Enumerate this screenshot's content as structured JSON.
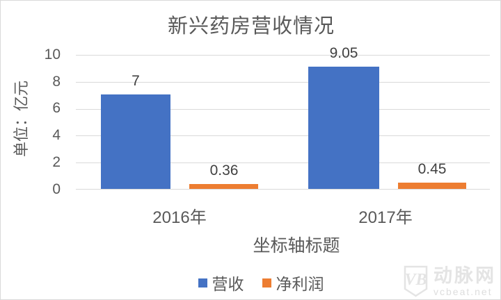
{
  "chart_data": {
    "type": "bar",
    "title": "新兴药房营收情况",
    "categories": [
      "2016年",
      "2017年"
    ],
    "series": [
      {
        "name": "营收",
        "color": "#4472C4",
        "values": [
          7,
          9.05
        ],
        "labels": [
          "7",
          "9.05"
        ]
      },
      {
        "name": "净利润",
        "color": "#ED7D31",
        "values": [
          0.36,
          0.45
        ],
        "labels": [
          "0.36",
          "0.45"
        ]
      }
    ],
    "xlabel": "坐标轴标题",
    "ylabel": "单位：亿元",
    "ylim": [
      0,
      10
    ],
    "yticks": [
      "10",
      "8",
      "6",
      "4",
      "2",
      "0"
    ],
    "grid": true,
    "legend_position": "bottom"
  },
  "watermark": {
    "logo_text": "VB",
    "brand": "动脉网",
    "site": "vcbeat.net"
  },
  "colors": {
    "revenue": "#4472C4",
    "net_profit": "#ED7D31",
    "gridline": "#D9D9D9",
    "axis_text": "#595959",
    "data_label": "#404040",
    "watermark": "#E4E4E4"
  }
}
